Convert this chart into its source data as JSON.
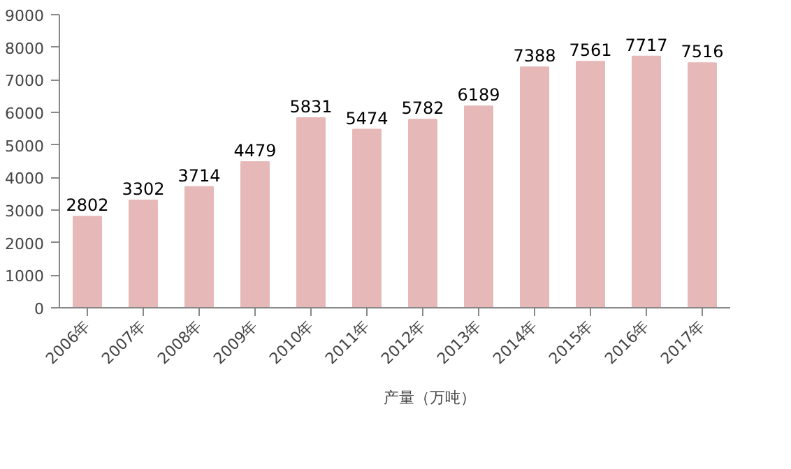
{
  "chart_data": {
    "type": "bar",
    "categories": [
      "2006年",
      "2007年",
      "2008年",
      "2009年",
      "2010年",
      "2011年",
      "2012年",
      "2013年",
      "2014年",
      "2015年",
      "2016年",
      "2017年"
    ],
    "series": [
      {
        "name": "产量（万吨）",
        "color": "#e6b9b8",
        "values": [
          2802,
          3302,
          3714,
          4479,
          5831,
          5474,
          5782,
          6189,
          7388,
          7561,
          7717,
          7516
        ]
      }
    ],
    "ylim": [
      0,
      9000
    ],
    "yticks": [
      0,
      1000,
      2000,
      3000,
      4000,
      5000,
      6000,
      7000,
      8000,
      9000
    ],
    "grid": false,
    "legend": "bottom",
    "data_labels": true
  }
}
